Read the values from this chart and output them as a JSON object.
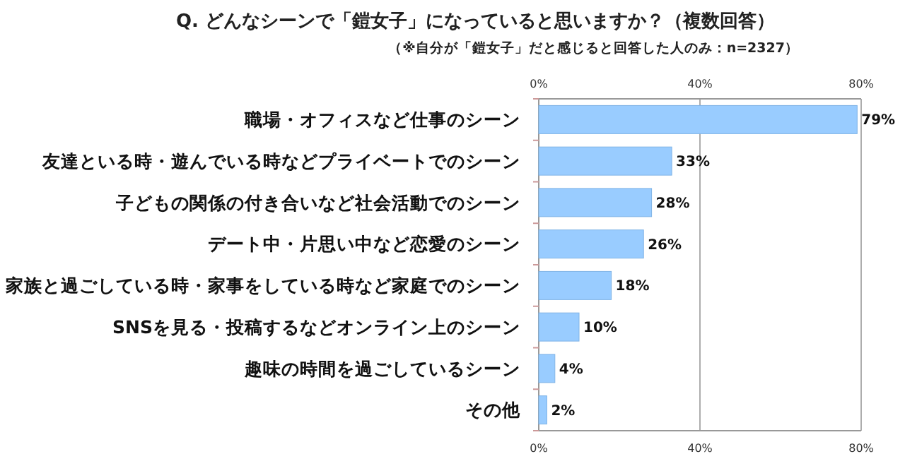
{
  "chart_data": {
    "type": "bar",
    "orientation": "horizontal",
    "title": "Q. どんなシーンで「鎧女子」になっていると思いますか？（複数回答）",
    "subtitle": "（※自分が「鎧女子」だと感じると回答した人のみ：n=2327）",
    "categories": [
      "職場・オフィスなど仕事のシーン",
      "友達といる時・遊んでいる時などプライベートでのシーン",
      "子どもの関係の付き合いなど社会活動でのシーン",
      "デート中・片思い中など恋愛のシーン",
      "家族と過ごしている時・家事をしている時など家庭でのシーン",
      "SNSを見る・投稿するなどオンライン上のシーン",
      "趣味の時間を過ごしているシーン",
      "その他"
    ],
    "values": [
      79,
      33,
      28,
      26,
      18,
      10,
      4,
      2
    ],
    "value_labels": [
      "79%",
      "33%",
      "28%",
      "26%",
      "18%",
      "10%",
      "4%",
      "2%"
    ],
    "color": "#99ccff",
    "xlim": [
      0,
      80
    ],
    "xticks": [
      {
        "value": 0,
        "label": "0%"
      },
      {
        "value": 40,
        "label": "40%"
      },
      {
        "value": 80,
        "label": "80%"
      }
    ],
    "x2lim": [
      0,
      80
    ],
    "x2ticks": [
      {
        "value": 0,
        "label": "0%"
      },
      {
        "value": 40,
        "label": "40%"
      },
      {
        "value": 80,
        "label": "80%"
      }
    ],
    "grid": "x"
  }
}
